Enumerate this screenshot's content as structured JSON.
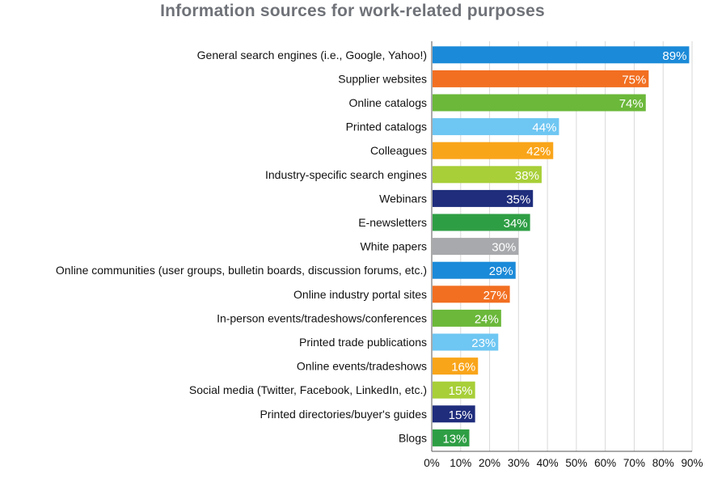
{
  "chart_data": {
    "type": "bar",
    "orientation": "horizontal",
    "title": "Information sources for work-related purposes",
    "categories": [
      "General search engines (i.e., Google, Yahoo!)",
      "Supplier websites",
      "Online catalogs",
      "Printed catalogs",
      "Colleagues",
      "Industry-specific search engines",
      "Webinars",
      "E-newsletters",
      "White papers",
      "Online communities (user groups, bulletin boards, discussion forums, etc.)",
      "Online industry portal sites",
      "In-person events/tradeshows/conferences",
      "Printed trade publications",
      "Online events/tradeshows",
      "Social media (Twitter, Facebook, LinkedIn, etc.)",
      "Printed directories/buyer's guides",
      "Blogs"
    ],
    "values": [
      89,
      75,
      74,
      44,
      42,
      38,
      35,
      34,
      30,
      29,
      27,
      24,
      23,
      16,
      15,
      15,
      13
    ],
    "value_labels": [
      "89%",
      "75%",
      "74%",
      "44%",
      "42%",
      "38%",
      "35%",
      "34%",
      "30%",
      "29%",
      "27%",
      "24%",
      "23%",
      "16%",
      "15%",
      "15%",
      "13%"
    ],
    "colors": [
      "#1b8ad8",
      "#f26f21",
      "#6bb83a",
      "#6ec6f2",
      "#f9a51a",
      "#a8cf38",
      "#1f2d7c",
      "#2e9e44",
      "#a7a9ac",
      "#1b8ad8",
      "#f26f21",
      "#6bb83a",
      "#6ec6f2",
      "#f9a51a",
      "#a8cf38",
      "#1f2d7c",
      "#2e9e44"
    ],
    "xlim": [
      0,
      90
    ],
    "xticks": [
      "0%",
      "10%",
      "20%",
      "30%",
      "40%",
      "50%",
      "60%",
      "70%",
      "80%",
      "90%"
    ],
    "grid": true,
    "xlabel": "",
    "ylabel": ""
  }
}
